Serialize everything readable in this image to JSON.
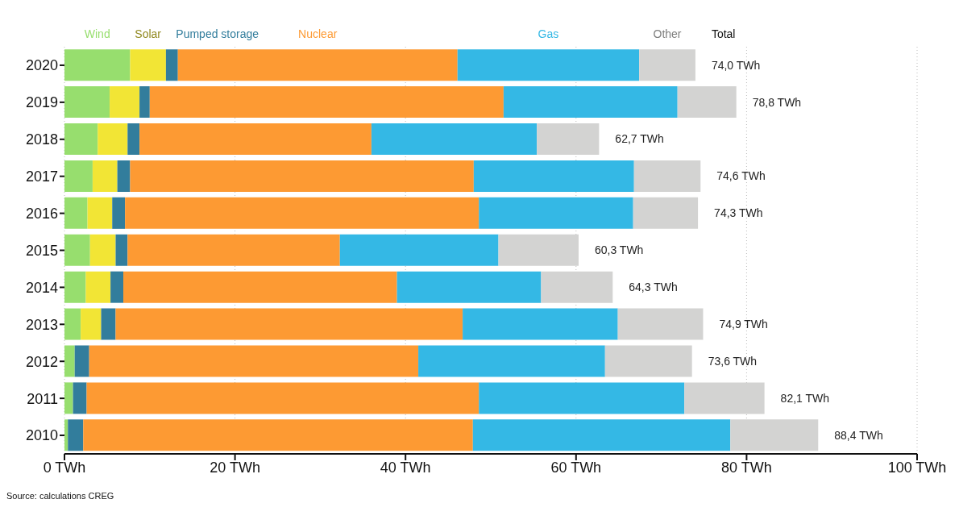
{
  "chart_data": {
    "type": "bar",
    "orientation": "horizontal",
    "stacked": true,
    "categories": [
      "2020",
      "2019",
      "2018",
      "2017",
      "2016",
      "2015",
      "2014",
      "2013",
      "2012",
      "2011",
      "2010"
    ],
    "series": [
      {
        "name": "Wind",
        "color": "#97de6e",
        "values": [
          7.7,
          5.3,
          3.9,
          3.3,
          2.7,
          3.0,
          2.5,
          1.9,
          1.2,
          1.0,
          0.4
        ]
      },
      {
        "name": "Solar",
        "color": "#f2e535",
        "values": [
          4.2,
          3.5,
          3.5,
          2.9,
          2.9,
          3.0,
          2.9,
          2.4,
          0,
          0,
          0
        ]
      },
      {
        "name": "Pumped storage",
        "color": "#327d9c",
        "values": [
          1.4,
          1.2,
          1.4,
          1.5,
          1.5,
          1.4,
          1.5,
          1.7,
          1.7,
          1.6,
          1.8
        ]
      },
      {
        "name": "Nuclear",
        "color": "#fd9a33",
        "values": [
          32.8,
          41.5,
          27.2,
          40.3,
          41.5,
          24.9,
          32.1,
          40.7,
          38.6,
          46.0,
          45.7
        ]
      },
      {
        "name": "Gas",
        "color": "#34b8e5",
        "values": [
          21.3,
          20.4,
          19.4,
          18.8,
          18.1,
          18.6,
          16.9,
          18.2,
          21.9,
          24.1,
          30.2
        ]
      },
      {
        "name": "Other",
        "color": "#d3d3d2",
        "values": [
          6.6,
          6.9,
          7.3,
          7.8,
          7.6,
          9.4,
          8.4,
          10.0,
          10.2,
          9.4,
          10.3
        ]
      }
    ],
    "totals": [
      "74,0 TWh",
      "78,8 TWh",
      "62,7 TWh",
      "74,6 TWh",
      "74,3 TWh",
      "60,3 TWh",
      "64,3 TWh",
      "74,9 TWh",
      "73,6 TWh",
      "82,1 TWh",
      "88,4 TWh"
    ],
    "xlim": [
      0,
      100
    ],
    "xticks": [
      {
        "value": 0,
        "label": "0 TWh"
      },
      {
        "value": 20,
        "label": "20 TWh"
      },
      {
        "value": 40,
        "label": "40 TWh"
      },
      {
        "value": 60,
        "label": "60 TWh"
      },
      {
        "value": 80,
        "label": "80 TWh"
      },
      {
        "value": 100,
        "label": "100 TWh"
      }
    ],
    "grid": "x",
    "legend": "top",
    "annotations": [
      "Total",
      "Source: calculations CREG"
    ]
  }
}
